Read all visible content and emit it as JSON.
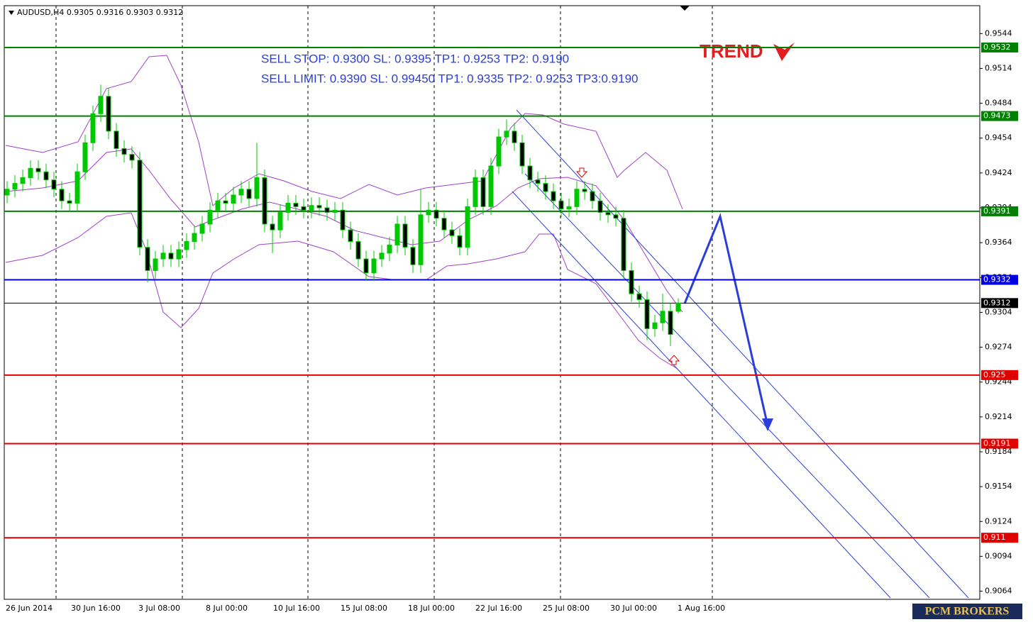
{
  "chart_data": {
    "type": "candlestick",
    "title": "AUDUSD,H4  0.9305 0.9316 0.9303 0.9312",
    "annotations": [
      "SELL STOP: 0.9300 SL: 0.9395 TP1: 0.9253 TP2: 0.9190",
      "SELL LIMIT: 0.9390 SL: 0.99450 TP1: 0.9335 TP2: 0.9253 TP3:0.9190"
    ],
    "logo": "TREND",
    "footer": "PCM BROKERS",
    "x_labels": [
      "26 Jun 2014",
      "30 Jun 16:00",
      "3 Jul 08:00",
      "8 Jul 00:00",
      "10 Jul 16:00",
      "15 Jul 08:00",
      "18 Jul 00:00",
      "22 Jul 16:00",
      "25 Jul 08:00",
      "30 Jul 00:00",
      "1 Aug 16:00"
    ],
    "ylim": [
      0.9568,
      0.9057
    ],
    "yticks": [
      0.9544,
      0.9514,
      0.9484,
      0.9454,
      0.9424,
      0.9394,
      0.9364,
      0.9334,
      0.9304,
      0.9274,
      0.9244,
      0.9214,
      0.9184,
      0.9154,
      0.9124,
      0.9094,
      0.9064
    ],
    "up_color": "#00c800",
    "down_color": "#000000",
    "levels": [
      {
        "value": 0.9532,
        "color": "#008000"
      },
      {
        "value": 0.9473,
        "color": "#008000"
      },
      {
        "value": 0.9391,
        "color": "#008000"
      },
      {
        "value": 0.9332,
        "color": "#0000e0"
      },
      {
        "value": 0.9312,
        "color": "#000000"
      },
      {
        "value": 0.925,
        "color": "#e00000"
      },
      {
        "value": 0.9191,
        "color": "#e00000"
      },
      {
        "value": 0.911,
        "color": "#e00000"
      }
    ],
    "candles": [
      [
        0.9405,
        0.9417,
        0.9398,
        0.941
      ],
      [
        0.941,
        0.9422,
        0.9403,
        0.9415
      ],
      [
        0.9415,
        0.9427,
        0.9408,
        0.942
      ],
      [
        0.942,
        0.9435,
        0.9413,
        0.9428
      ],
      [
        0.9428,
        0.9435,
        0.9418,
        0.9425
      ],
      [
        0.9425,
        0.9432,
        0.9411,
        0.9418
      ],
      [
        0.9418,
        0.9425,
        0.9403,
        0.941
      ],
      [
        0.941,
        0.9417,
        0.9393,
        0.94
      ],
      [
        0.94,
        0.9407,
        0.9391,
        0.9398
      ],
      [
        0.9398,
        0.9432,
        0.9391,
        0.9425
      ],
      [
        0.9425,
        0.9457,
        0.9418,
        0.945
      ],
      [
        0.945,
        0.9482,
        0.9443,
        0.9475
      ],
      [
        0.9475,
        0.95,
        0.9468,
        0.949
      ],
      [
        0.949,
        0.9497,
        0.9453,
        0.946
      ],
      [
        0.946,
        0.9467,
        0.9438,
        0.9445
      ],
      [
        0.9445,
        0.9452,
        0.9433,
        0.944
      ],
      [
        0.944,
        0.9447,
        0.9428,
        0.9435
      ],
      [
        0.9435,
        0.9442,
        0.9353,
        0.936
      ],
      [
        0.936,
        0.9367,
        0.933,
        0.934
      ],
      [
        0.934,
        0.9357,
        0.9333,
        0.935
      ],
      [
        0.935,
        0.9362,
        0.9343,
        0.9355
      ],
      [
        0.9355,
        0.9362,
        0.9343,
        0.935
      ],
      [
        0.935,
        0.9365,
        0.9343,
        0.9358
      ],
      [
        0.9358,
        0.9372,
        0.9351,
        0.9365
      ],
      [
        0.9365,
        0.9379,
        0.9358,
        0.9372
      ],
      [
        0.9372,
        0.9387,
        0.9365,
        0.938
      ],
      [
        0.938,
        0.9399,
        0.9373,
        0.9392
      ],
      [
        0.9392,
        0.9407,
        0.9385,
        0.94
      ],
      [
        0.94,
        0.9407,
        0.9391,
        0.9398
      ],
      [
        0.9398,
        0.9412,
        0.9391,
        0.9405
      ],
      [
        0.9405,
        0.9417,
        0.9398,
        0.941
      ],
      [
        0.941,
        0.9417,
        0.9395,
        0.9402
      ],
      [
        0.9402,
        0.945,
        0.9395,
        0.942
      ],
      [
        0.942,
        0.9427,
        0.9373,
        0.938
      ],
      [
        0.938,
        0.9387,
        0.9355,
        0.9375
      ],
      [
        0.9375,
        0.9397,
        0.9368,
        0.939
      ],
      [
        0.939,
        0.9405,
        0.9383,
        0.9398
      ],
      [
        0.9398,
        0.9405,
        0.9388,
        0.9395
      ],
      [
        0.9395,
        0.9402,
        0.9385,
        0.9392
      ],
      [
        0.9392,
        0.9403,
        0.9385,
        0.9396
      ],
      [
        0.9396,
        0.9403,
        0.9387,
        0.9394
      ],
      [
        0.9394,
        0.9401,
        0.9383,
        0.939
      ],
      [
        0.939,
        0.9399,
        0.9383,
        0.9392
      ],
      [
        0.9392,
        0.9399,
        0.9368,
        0.9375
      ],
      [
        0.9375,
        0.9382,
        0.9358,
        0.9365
      ],
      [
        0.9365,
        0.9372,
        0.9343,
        0.935
      ],
      [
        0.935,
        0.9357,
        0.9331,
        0.9338
      ],
      [
        0.9338,
        0.9357,
        0.9331,
        0.935
      ],
      [
        0.935,
        0.9362,
        0.9343,
        0.9355
      ],
      [
        0.9355,
        0.9369,
        0.9348,
        0.9362
      ],
      [
        0.9362,
        0.9387,
        0.9355,
        0.938
      ],
      [
        0.938,
        0.9387,
        0.9353,
        0.936
      ],
      [
        0.936,
        0.9367,
        0.9338,
        0.9345
      ],
      [
        0.9345,
        0.941,
        0.9338,
        0.9388
      ],
      [
        0.9388,
        0.9399,
        0.9381,
        0.9392
      ],
      [
        0.9392,
        0.9399,
        0.9378,
        0.9385
      ],
      [
        0.9385,
        0.9392,
        0.9368,
        0.9375
      ],
      [
        0.9375,
        0.9382,
        0.9363,
        0.937
      ],
      [
        0.937,
        0.9377,
        0.9353,
        0.936
      ],
      [
        0.936,
        0.9402,
        0.9353,
        0.9395
      ],
      [
        0.9395,
        0.9427,
        0.9388,
        0.942
      ],
      [
        0.942,
        0.9427,
        0.9388,
        0.9395
      ],
      [
        0.9395,
        0.9437,
        0.9388,
        0.943
      ],
      [
        0.943,
        0.9462,
        0.9423,
        0.9455
      ],
      [
        0.9455,
        0.947,
        0.9448,
        0.946
      ],
      [
        0.946,
        0.9467,
        0.9443,
        0.945
      ],
      [
        0.945,
        0.9457,
        0.9423,
        0.943
      ],
      [
        0.943,
        0.9437,
        0.9411,
        0.9418
      ],
      [
        0.9418,
        0.9425,
        0.9408,
        0.9415
      ],
      [
        0.9415,
        0.9422,
        0.9401,
        0.9408
      ],
      [
        0.9408,
        0.9415,
        0.9393,
        0.94
      ],
      [
        0.94,
        0.9407,
        0.9386,
        0.9393
      ],
      [
        0.9393,
        0.9402,
        0.9386,
        0.9395
      ],
      [
        0.9395,
        0.9417,
        0.9388,
        0.941
      ],
      [
        0.941,
        0.9417,
        0.9401,
        0.9408
      ],
      [
        0.9408,
        0.9415,
        0.9393,
        0.94
      ],
      [
        0.94,
        0.9407,
        0.9383,
        0.939
      ],
      [
        0.939,
        0.9397,
        0.9381,
        0.9388
      ],
      [
        0.9388,
        0.9395,
        0.9378,
        0.9385
      ],
      [
        0.9385,
        0.9392,
        0.9333,
        0.934
      ],
      [
        0.934,
        0.9347,
        0.9313,
        0.932
      ],
      [
        0.932,
        0.9327,
        0.9308,
        0.9315
      ],
      [
        0.9315,
        0.9322,
        0.928,
        0.929
      ],
      [
        0.929,
        0.9302,
        0.9283,
        0.9295
      ],
      [
        0.9295,
        0.932,
        0.9288,
        0.9305
      ],
      [
        0.9305,
        0.9312,
        0.9275,
        0.9285
      ],
      [
        0.9305,
        0.9316,
        0.9303,
        0.9312
      ]
    ]
  }
}
